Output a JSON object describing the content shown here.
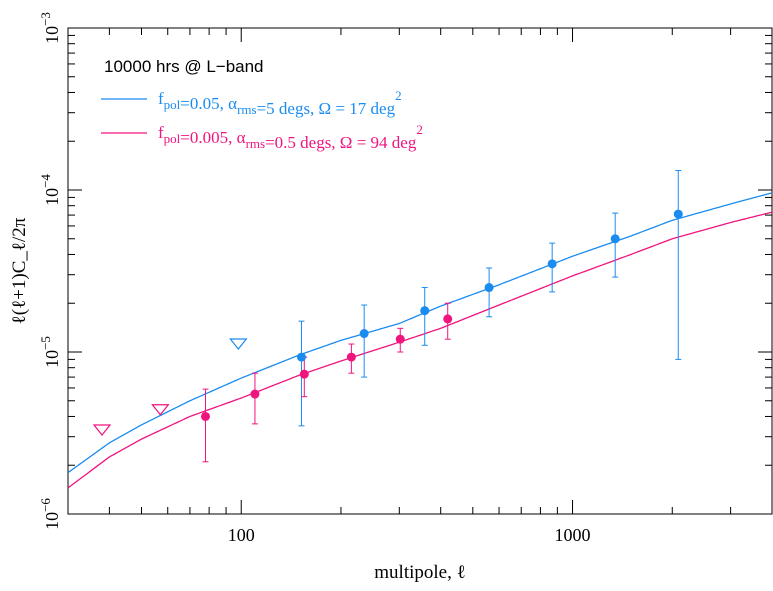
{
  "chart_data": {
    "type": "scatter",
    "xscale": "log",
    "yscale": "log",
    "xlim": [
      30,
      4000
    ],
    "ylim": [
      1e-06,
      0.001
    ],
    "xlabel": "multipole, ℓ",
    "ylabel": "ℓ(ℓ+1)C_ℓ/2π",
    "x_tick_labels": [
      "100",
      "1000"
    ],
    "y_tick_labels": [
      {
        "base": "10",
        "exp": "−6"
      },
      {
        "base": "10",
        "exp": "−5"
      },
      {
        "base": "10",
        "exp": "−4"
      },
      {
        "base": "10",
        "exp": "−3"
      }
    ],
    "annotation": "10000 hrs @ L−band",
    "legend_placement": "top-left",
    "grid": false,
    "series": [
      {
        "color": "#1a8cf0",
        "legend_parts": [
          {
            "t": "f",
            "s": "n"
          },
          {
            "t": "pol",
            "s": "sub"
          },
          {
            "t": "=0.05, ",
            "s": "n"
          },
          {
            "t": "α",
            "s": "n"
          },
          {
            "t": "rms",
            "s": "sub"
          },
          {
            "t": "=5 degs, Ω = 17 deg",
            "s": "n"
          },
          {
            "t": "2",
            "s": "sup"
          }
        ],
        "curve": {
          "x": [
            30,
            40,
            50,
            70,
            100,
            150,
            200,
            300,
            400,
            600,
            1000,
            1500,
            2000,
            3000,
            4000
          ],
          "y": [
            1.8e-06,
            2.75e-06,
            3.55e-06,
            5e-06,
            6.9e-06,
            9.6e-06,
            1.18e-05,
            1.5e-05,
            1.92e-05,
            2.6e-05,
            3.9e-05,
            5.2e-05,
            6.5e-05,
            8.2e-05,
            9.6e-05
          ]
        },
        "points": [
          {
            "x": 152,
            "y": 9.3e-06,
            "lo": 3.5e-06,
            "hi": 1.55e-05
          },
          {
            "x": 235,
            "y": 1.3e-05,
            "lo": 7e-06,
            "hi": 1.95e-05
          },
          {
            "x": 358,
            "y": 1.8e-05,
            "lo": 1.1e-05,
            "hi": 2.5e-05
          },
          {
            "x": 560,
            "y": 2.5e-05,
            "lo": 1.65e-05,
            "hi": 3.3e-05
          },
          {
            "x": 868,
            "y": 3.5e-05,
            "lo": 2.35e-05,
            "hi": 4.7e-05
          },
          {
            "x": 1345,
            "y": 5e-05,
            "lo": 2.9e-05,
            "hi": 7.2e-05
          },
          {
            "x": 2085,
            "y": 7.1e-05,
            "lo": 9e-06,
            "hi": 0.000132
          }
        ],
        "upper_limits": [
          {
            "x": 98,
            "y": 1.12e-05
          }
        ]
      },
      {
        "color": "#f0147f",
        "legend_parts": [
          {
            "t": "f",
            "s": "n"
          },
          {
            "t": "pol",
            "s": "sub"
          },
          {
            "t": "=0.005, ",
            "s": "n"
          },
          {
            "t": "α",
            "s": "n"
          },
          {
            "t": "rms",
            "s": "sub"
          },
          {
            "t": "=0.5 degs, Ω = 94 deg",
            "s": "n"
          },
          {
            "t": "2",
            "s": "sup"
          }
        ],
        "curve": {
          "x": [
            30,
            40,
            50,
            70,
            100,
            150,
            200,
            300,
            400,
            600,
            1000,
            1500,
            2000,
            3000,
            4000
          ],
          "y": [
            1.45e-06,
            2.25e-06,
            2.9e-06,
            4e-06,
            5.2e-06,
            7.2e-06,
            8.8e-06,
            1.15e-05,
            1.4e-05,
            1.95e-05,
            2.95e-05,
            4e-05,
            5e-05,
            6.3e-05,
            7.3e-05
          ]
        },
        "points": [
          {
            "x": 78,
            "y": 4e-06,
            "lo": 2.1e-06,
            "hi": 5.9e-06
          },
          {
            "x": 110,
            "y": 5.5e-06,
            "lo": 3.6e-06,
            "hi": 7.4e-06
          },
          {
            "x": 155,
            "y": 7.3e-06,
            "lo": 5.3e-06,
            "hi": 9.3e-06
          },
          {
            "x": 215,
            "y": 9.3e-06,
            "lo": 7.4e-06,
            "hi": 1.12e-05
          },
          {
            "x": 302,
            "y": 1.2e-05,
            "lo": 1e-05,
            "hi": 1.4e-05
          },
          {
            "x": 420,
            "y": 1.6e-05,
            "lo": 1.2e-05,
            "hi": 2e-05
          }
        ],
        "upper_limits": [
          {
            "x": 38,
            "y": 3.3e-06
          },
          {
            "x": 57,
            "y": 4.4e-06
          }
        ]
      }
    ]
  }
}
